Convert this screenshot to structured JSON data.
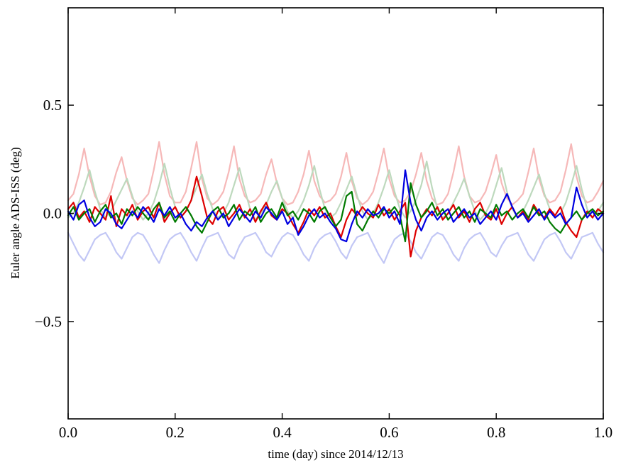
{
  "figure": {
    "background": "#ffffff",
    "xlabel": "time (day) since 2014/12/13",
    "ylabel": "Euler angle ADS-ISS (deg)",
    "xlim": [
      0.0,
      1.0
    ],
    "ylim": [
      -0.95,
      0.95
    ],
    "xticks": [
      0.0,
      0.2,
      0.4,
      0.6,
      0.8,
      1.0
    ],
    "xtick_labels": [
      "0.0",
      "0.2",
      "0.4",
      "0.6",
      "0.8",
      "1.0"
    ],
    "yticks": [
      0.5,
      0.0,
      -0.5
    ],
    "ytick_labels": [
      "0.5",
      "0.0",
      "−0.5"
    ],
    "frame_color": "#000000"
  },
  "chart_data": {
    "type": "line",
    "title": "",
    "xlabel": "time (day) since 2014/12/13",
    "ylabel": "Euler angle ADS-ISS (deg)",
    "xlim": [
      0.0,
      1.0
    ],
    "ylim": [
      -0.95,
      0.95
    ],
    "grid": false,
    "legend": "none",
    "x": {
      "start": 0.0,
      "step": 0.01,
      "n": 101
    },
    "series": [
      {
        "name": "euler-angle-1-faint",
        "color": "#f6b8b8",
        "width": 2.2,
        "values": [
          0.06,
          0.09,
          0.18,
          0.3,
          0.17,
          0.08,
          0.04,
          0.05,
          0.1,
          0.19,
          0.26,
          0.15,
          0.07,
          0.04,
          0.06,
          0.09,
          0.2,
          0.33,
          0.18,
          0.08,
          0.05,
          0.05,
          0.1,
          0.21,
          0.33,
          0.16,
          0.07,
          0.04,
          0.06,
          0.1,
          0.19,
          0.31,
          0.16,
          0.08,
          0.05,
          0.06,
          0.09,
          0.18,
          0.25,
          0.14,
          0.07,
          0.04,
          0.05,
          0.1,
          0.18,
          0.29,
          0.15,
          0.08,
          0.05,
          0.06,
          0.09,
          0.17,
          0.28,
          0.15,
          0.07,
          0.04,
          0.06,
          0.1,
          0.19,
          0.3,
          0.16,
          0.08,
          0.05,
          0.06,
          0.1,
          0.18,
          0.28,
          0.15,
          0.07,
          0.04,
          0.05,
          0.09,
          0.19,
          0.31,
          0.17,
          0.08,
          0.05,
          0.06,
          0.1,
          0.18,
          0.27,
          0.14,
          0.07,
          0.04,
          0.06,
          0.09,
          0.19,
          0.3,
          0.16,
          0.08,
          0.05,
          0.06,
          0.1,
          0.2,
          0.32,
          0.17,
          0.08,
          0.05,
          0.06,
          0.1,
          0.15
        ]
      },
      {
        "name": "euler-angle-2-faint",
        "color": "#bdd9bd",
        "width": 2.2,
        "values": [
          -0.02,
          0.0,
          0.05,
          0.12,
          0.2,
          0.1,
          0.02,
          -0.02,
          0.01,
          0.06,
          0.11,
          0.16,
          0.08,
          0.01,
          -0.03,
          0.0,
          0.05,
          0.13,
          0.23,
          0.12,
          0.03,
          -0.02,
          0.01,
          0.06,
          0.12,
          0.18,
          0.09,
          0.02,
          -0.02,
          0.0,
          0.05,
          0.13,
          0.21,
          0.11,
          0.02,
          -0.03,
          0.0,
          0.04,
          0.1,
          0.15,
          0.07,
          0.01,
          -0.02,
          0.01,
          0.06,
          0.13,
          0.22,
          0.11,
          0.02,
          -0.02,
          0.0,
          0.05,
          0.11,
          0.17,
          0.08,
          0.01,
          -0.03,
          0.0,
          0.05,
          0.12,
          0.2,
          0.1,
          0.02,
          -0.02,
          0.01,
          0.06,
          0.13,
          0.24,
          0.12,
          0.02,
          -0.02,
          0.0,
          0.05,
          0.1,
          0.16,
          0.08,
          0.01,
          -0.03,
          0.0,
          0.05,
          0.13,
          0.21,
          0.1,
          0.02,
          -0.02,
          0.01,
          0.06,
          0.12,
          0.18,
          0.09,
          0.02,
          -0.02,
          0.0,
          0.05,
          0.13,
          0.22,
          0.11,
          0.02,
          -0.02,
          0.01,
          0.05
        ]
      },
      {
        "name": "euler-angle-3-faint",
        "color": "#c2c7f5",
        "width": 2.2,
        "values": [
          -0.09,
          -0.14,
          -0.19,
          -0.22,
          -0.17,
          -0.12,
          -0.1,
          -0.09,
          -0.13,
          -0.18,
          -0.21,
          -0.16,
          -0.11,
          -0.09,
          -0.1,
          -0.14,
          -0.19,
          -0.23,
          -0.17,
          -0.12,
          -0.1,
          -0.09,
          -0.13,
          -0.18,
          -0.22,
          -0.16,
          -0.11,
          -0.1,
          -0.09,
          -0.14,
          -0.19,
          -0.21,
          -0.15,
          -0.11,
          -0.1,
          -0.09,
          -0.13,
          -0.18,
          -0.2,
          -0.15,
          -0.11,
          -0.09,
          -0.1,
          -0.14,
          -0.19,
          -0.22,
          -0.16,
          -0.12,
          -0.1,
          -0.09,
          -0.13,
          -0.18,
          -0.21,
          -0.15,
          -0.11,
          -0.1,
          -0.09,
          -0.14,
          -0.19,
          -0.23,
          -0.17,
          -0.12,
          -0.1,
          -0.09,
          -0.13,
          -0.18,
          -0.21,
          -0.16,
          -0.11,
          -0.09,
          -0.1,
          -0.14,
          -0.19,
          -0.22,
          -0.16,
          -0.12,
          -0.1,
          -0.09,
          -0.13,
          -0.18,
          -0.2,
          -0.15,
          -0.11,
          -0.1,
          -0.09,
          -0.14,
          -0.19,
          -0.22,
          -0.17,
          -0.12,
          -0.1,
          -0.09,
          -0.13,
          -0.18,
          -0.21,
          -0.16,
          -0.11,
          -0.1,
          -0.09,
          -0.14,
          -0.18
        ]
      },
      {
        "name": "euler-angle-1",
        "color": "#dd0000",
        "width": 2.2,
        "values": [
          0.02,
          0.05,
          -0.02,
          0.01,
          -0.04,
          0.03,
          0.0,
          -0.03,
          0.08,
          -0.06,
          0.02,
          -0.01,
          0.04,
          -0.03,
          0.01,
          0.03,
          -0.02,
          0.05,
          -0.04,
          0.0,
          0.03,
          -0.02,
          0.01,
          0.06,
          0.17,
          0.08,
          -0.02,
          -0.05,
          0.01,
          0.03,
          -0.03,
          0.0,
          0.04,
          -0.02,
          0.02,
          -0.04,
          0.01,
          0.05,
          -0.01,
          -0.03,
          0.02,
          0.0,
          -0.05,
          -0.09,
          -0.04,
          0.02,
          -0.01,
          0.03,
          -0.02,
          0.0,
          -0.06,
          -0.11,
          -0.03,
          0.02,
          -0.01,
          0.03,
          0.0,
          -0.02,
          0.04,
          -0.01,
          0.02,
          -0.03,
          0.01,
          0.05,
          -0.2,
          -0.08,
          -0.02,
          0.02,
          -0.01,
          0.03,
          -0.03,
          0.0,
          0.04,
          -0.02,
          0.01,
          -0.04,
          0.02,
          0.05,
          -0.01,
          -0.03,
          0.02,
          -0.05,
          0.0,
          0.03,
          -0.02,
          0.01,
          -0.03,
          0.04,
          0.0,
          -0.02,
          0.02,
          -0.01,
          0.03,
          -0.04,
          -0.08,
          -0.11,
          -0.03,
          0.01,
          -0.02,
          0.02,
          0.0
        ]
      },
      {
        "name": "euler-angle-2",
        "color": "#007a00",
        "width": 2.2,
        "values": [
          -0.01,
          0.03,
          -0.03,
          0.0,
          0.02,
          -0.04,
          0.01,
          0.04,
          -0.02,
          0.0,
          -0.05,
          0.02,
          -0.01,
          0.03,
          0.0,
          -0.03,
          0.02,
          0.05,
          -0.02,
          0.01,
          -0.04,
          0.0,
          0.03,
          -0.01,
          -0.06,
          -0.09,
          -0.04,
          0.01,
          0.03,
          -0.02,
          0.0,
          0.04,
          -0.03,
          0.01,
          -0.01,
          0.03,
          -0.04,
          0.0,
          0.02,
          -0.02,
          0.05,
          -0.01,
          0.01,
          -0.03,
          0.02,
          0.0,
          -0.04,
          0.01,
          0.03,
          -0.02,
          -0.06,
          -0.03,
          0.08,
          0.1,
          -0.05,
          -0.08,
          -0.03,
          0.01,
          -0.02,
          0.02,
          0.0,
          0.03,
          -0.01,
          -0.13,
          0.14,
          0.04,
          -0.02,
          0.01,
          0.05,
          -0.01,
          0.02,
          -0.03,
          0.0,
          0.03,
          -0.02,
          0.01,
          -0.04,
          0.02,
          0.0,
          -0.02,
          0.04,
          -0.01,
          0.01,
          -0.03,
          0.0,
          0.02,
          -0.02,
          0.03,
          -0.01,
          0.01,
          -0.04,
          -0.07,
          -0.09,
          -0.05,
          -0.02,
          0.01,
          -0.03,
          0.0,
          0.02,
          -0.01,
          0.01
        ]
      },
      {
        "name": "euler-angle-3",
        "color": "#0000e0",
        "width": 2.2,
        "values": [
          0.01,
          -0.03,
          0.04,
          0.06,
          -0.02,
          -0.06,
          -0.04,
          0.02,
          0.0,
          -0.05,
          -0.07,
          -0.03,
          0.01,
          -0.02,
          0.03,
          0.0,
          -0.04,
          0.02,
          -0.01,
          0.03,
          -0.02,
          0.0,
          -0.05,
          -0.08,
          -0.04,
          -0.06,
          -0.02,
          0.01,
          -0.03,
          0.0,
          -0.06,
          -0.02,
          0.02,
          -0.01,
          -0.04,
          0.01,
          -0.02,
          0.03,
          0.0,
          -0.03,
          0.01,
          -0.05,
          -0.02,
          -0.1,
          -0.06,
          -0.01,
          0.02,
          -0.02,
          0.0,
          -0.04,
          -0.07,
          -0.12,
          -0.13,
          -0.05,
          0.01,
          -0.02,
          0.02,
          -0.01,
          0.0,
          0.03,
          -0.02,
          0.01,
          -0.05,
          0.2,
          0.05,
          -0.03,
          -0.08,
          -0.02,
          0.01,
          -0.03,
          0.0,
          0.02,
          -0.04,
          -0.01,
          0.02,
          -0.02,
          0.0,
          -0.05,
          -0.02,
          0.01,
          -0.03,
          0.04,
          0.09,
          0.03,
          -0.02,
          0.0,
          -0.04,
          -0.01,
          0.02,
          -0.03,
          0.01,
          -0.02,
          0.0,
          -0.05,
          -0.02,
          0.12,
          0.04,
          -0.02,
          0.01,
          -0.03,
          0.0
        ]
      }
    ]
  }
}
